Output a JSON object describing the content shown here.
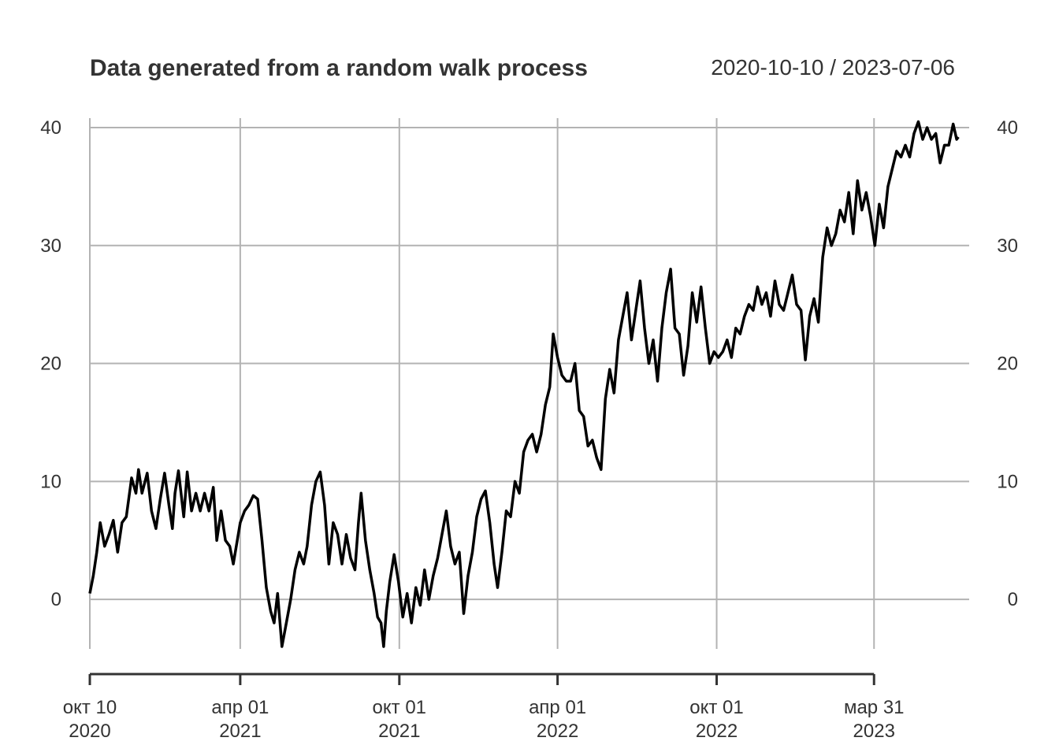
{
  "chart_data": {
    "type": "line",
    "title": "Data generated from a random walk process",
    "date_range_label": "2020-10-10 / 2023-07-06",
    "ylim": [
      -4.2,
      40.8
    ],
    "grid": true,
    "line_color": "#000000",
    "y_ticks": [
      0,
      10,
      20,
      30,
      40
    ],
    "x_ticks": [
      {
        "date": "2020-10-10",
        "line1": "окт 10",
        "line2": "2020"
      },
      {
        "date": "2021-04-01",
        "line1": "апр 01",
        "line2": "2021"
      },
      {
        "date": "2021-10-01",
        "line1": "окт 01",
        "line2": "2021"
      },
      {
        "date": "2022-04-01",
        "line1": "апр 01",
        "line2": "2022"
      },
      {
        "date": "2022-10-01",
        "line1": "окт 01",
        "line2": "2022"
      },
      {
        "date": "2023-03-31",
        "line1": "мар 31",
        "line2": "2023"
      }
    ],
    "series": [
      {
        "values": [
          [
            "2020-10-10",
            0.5
          ],
          [
            "2020-10-14",
            2
          ],
          [
            "2020-10-18",
            4
          ],
          [
            "2020-10-22",
            6.5
          ],
          [
            "2020-10-27",
            4.5
          ],
          [
            "2020-11-01",
            5.5
          ],
          [
            "2020-11-06",
            6.7
          ],
          [
            "2020-11-11",
            4
          ],
          [
            "2020-11-16",
            6.5
          ],
          [
            "2020-11-21",
            7
          ],
          [
            "2020-11-27",
            10.3
          ],
          [
            "2020-12-02",
            9
          ],
          [
            "2020-12-05",
            11
          ],
          [
            "2020-12-09",
            9
          ],
          [
            "2020-12-15",
            10.7
          ],
          [
            "2020-12-20",
            7.5
          ],
          [
            "2020-12-25",
            6
          ],
          [
            "2020-12-30",
            8.5
          ],
          [
            "2021-01-04",
            10.7
          ],
          [
            "2021-01-09",
            8
          ],
          [
            "2021-01-13",
            6
          ],
          [
            "2021-01-16",
            9
          ],
          [
            "2021-01-20",
            10.9
          ],
          [
            "2021-01-26",
            7
          ],
          [
            "2021-01-30",
            10.8
          ],
          [
            "2021-02-04",
            7.5
          ],
          [
            "2021-02-09",
            9
          ],
          [
            "2021-02-14",
            7.5
          ],
          [
            "2021-02-19",
            9
          ],
          [
            "2021-02-24",
            7.5
          ],
          [
            "2021-03-01",
            9.5
          ],
          [
            "2021-03-05",
            5
          ],
          [
            "2021-03-10",
            7.5
          ],
          [
            "2021-03-15",
            5
          ],
          [
            "2021-03-20",
            4.5
          ],
          [
            "2021-03-24",
            3
          ],
          [
            "2021-04-01",
            6.5
          ],
          [
            "2021-04-06",
            7.5
          ],
          [
            "2021-04-11",
            8
          ],
          [
            "2021-04-16",
            8.8
          ],
          [
            "2021-04-21",
            8.5
          ],
          [
            "2021-04-26",
            5
          ],
          [
            "2021-05-01",
            1
          ],
          [
            "2021-05-06",
            -1
          ],
          [
            "2021-05-10",
            -2
          ],
          [
            "2021-05-14",
            0.5
          ],
          [
            "2021-05-19",
            -4
          ],
          [
            "2021-05-24",
            -2
          ],
          [
            "2021-05-29",
            0
          ],
          [
            "2021-06-03",
            2.5
          ],
          [
            "2021-06-08",
            4
          ],
          [
            "2021-06-13",
            3
          ],
          [
            "2021-06-17",
            4.5
          ],
          [
            "2021-06-22",
            8
          ],
          [
            "2021-06-27",
            10
          ],
          [
            "2021-07-02",
            10.8
          ],
          [
            "2021-07-07",
            8
          ],
          [
            "2021-07-12",
            3
          ],
          [
            "2021-07-17",
            6.5
          ],
          [
            "2021-07-22",
            5.5
          ],
          [
            "2021-07-27",
            3
          ],
          [
            "2021-08-01",
            5.5
          ],
          [
            "2021-08-06",
            3.5
          ],
          [
            "2021-08-11",
            2.5
          ],
          [
            "2021-08-15",
            6.5
          ],
          [
            "2021-08-18",
            9
          ],
          [
            "2021-08-23",
            5
          ],
          [
            "2021-08-28",
            2.5
          ],
          [
            "2021-09-02",
            0.5
          ],
          [
            "2021-09-06",
            -1.5
          ],
          [
            "2021-09-10",
            -2
          ],
          [
            "2021-09-13",
            -4
          ],
          [
            "2021-09-16",
            -1
          ],
          [
            "2021-09-20",
            1.5
          ],
          [
            "2021-09-25",
            3.8
          ],
          [
            "2021-09-30",
            1.5
          ],
          [
            "2021-10-05",
            -1.5
          ],
          [
            "2021-10-10",
            0.5
          ],
          [
            "2021-10-15",
            -2
          ],
          [
            "2021-10-20",
            1
          ],
          [
            "2021-10-25",
            -0.5
          ],
          [
            "2021-10-30",
            2.5
          ],
          [
            "2021-11-04",
            0
          ],
          [
            "2021-11-09",
            2
          ],
          [
            "2021-11-14",
            3.5
          ],
          [
            "2021-11-19",
            5.5
          ],
          [
            "2021-11-24",
            7.5
          ],
          [
            "2021-11-29",
            4.5
          ],
          [
            "2021-12-04",
            3
          ],
          [
            "2021-12-09",
            4
          ],
          [
            "2021-12-14",
            -1.2
          ],
          [
            "2021-12-19",
            2
          ],
          [
            "2021-12-24",
            4
          ],
          [
            "2021-12-29",
            7
          ],
          [
            "2022-01-03",
            8.5
          ],
          [
            "2022-01-08",
            9.2
          ],
          [
            "2022-01-13",
            6.5
          ],
          [
            "2022-01-18",
            3
          ],
          [
            "2022-01-22",
            1
          ],
          [
            "2022-01-27",
            4
          ],
          [
            "2022-02-01",
            7.5
          ],
          [
            "2022-02-06",
            7
          ],
          [
            "2022-02-11",
            10
          ],
          [
            "2022-02-16",
            9
          ],
          [
            "2022-02-21",
            12.5
          ],
          [
            "2022-02-26",
            13.5
          ],
          [
            "2022-03-03",
            14
          ],
          [
            "2022-03-08",
            12.5
          ],
          [
            "2022-03-13",
            14
          ],
          [
            "2022-03-18",
            16.5
          ],
          [
            "2022-03-23",
            18
          ],
          [
            "2022-03-27",
            22.5
          ],
          [
            "2022-04-01",
            20.5
          ],
          [
            "2022-04-06",
            19
          ],
          [
            "2022-04-11",
            18.5
          ],
          [
            "2022-04-16",
            18.5
          ],
          [
            "2022-04-21",
            20
          ],
          [
            "2022-04-26",
            16
          ],
          [
            "2022-05-01",
            15.5
          ],
          [
            "2022-05-06",
            13
          ],
          [
            "2022-05-11",
            13.5
          ],
          [
            "2022-05-16",
            12
          ],
          [
            "2022-05-21",
            11
          ],
          [
            "2022-05-26",
            17
          ],
          [
            "2022-05-31",
            19.5
          ],
          [
            "2022-06-05",
            17.5
          ],
          [
            "2022-06-10",
            22
          ],
          [
            "2022-06-15",
            24
          ],
          [
            "2022-06-20",
            26
          ],
          [
            "2022-06-25",
            22
          ],
          [
            "2022-06-30",
            24.5
          ],
          [
            "2022-07-05",
            27
          ],
          [
            "2022-07-10",
            23
          ],
          [
            "2022-07-15",
            20
          ],
          [
            "2022-07-20",
            22
          ],
          [
            "2022-07-25",
            18.5
          ],
          [
            "2022-07-30",
            23
          ],
          [
            "2022-08-04",
            26
          ],
          [
            "2022-08-09",
            28
          ],
          [
            "2022-08-14",
            23
          ],
          [
            "2022-08-19",
            22.5
          ],
          [
            "2022-08-24",
            19
          ],
          [
            "2022-08-29",
            21.5
          ],
          [
            "2022-09-03",
            26
          ],
          [
            "2022-09-08",
            23.5
          ],
          [
            "2022-09-13",
            26.5
          ],
          [
            "2022-09-18",
            23
          ],
          [
            "2022-09-23",
            20
          ],
          [
            "2022-09-28",
            21
          ],
          [
            "2022-10-03",
            20.5
          ],
          [
            "2022-10-08",
            21
          ],
          [
            "2022-10-13",
            22
          ],
          [
            "2022-10-18",
            20.5
          ],
          [
            "2022-10-23",
            23
          ],
          [
            "2022-10-28",
            22.5
          ],
          [
            "2022-11-02",
            24
          ],
          [
            "2022-11-07",
            25
          ],
          [
            "2022-11-12",
            24.5
          ],
          [
            "2022-11-17",
            26.5
          ],
          [
            "2022-11-22",
            25
          ],
          [
            "2022-11-27",
            26
          ],
          [
            "2022-12-02",
            24
          ],
          [
            "2022-12-07",
            27
          ],
          [
            "2022-12-12",
            25
          ],
          [
            "2022-12-17",
            24.5
          ],
          [
            "2022-12-22",
            26
          ],
          [
            "2022-12-27",
            27.5
          ],
          [
            "2023-01-01",
            25
          ],
          [
            "2023-01-06",
            24.5
          ],
          [
            "2023-01-11",
            20.3
          ],
          [
            "2023-01-16",
            24
          ],
          [
            "2023-01-21",
            25.5
          ],
          [
            "2023-01-26",
            23.5
          ],
          [
            "2023-01-31",
            29
          ],
          [
            "2023-02-05",
            31.5
          ],
          [
            "2023-02-10",
            30
          ],
          [
            "2023-02-15",
            31
          ],
          [
            "2023-02-20",
            33
          ],
          [
            "2023-02-25",
            32
          ],
          [
            "2023-03-02",
            34.5
          ],
          [
            "2023-03-07",
            31
          ],
          [
            "2023-03-12",
            35.5
          ],
          [
            "2023-03-17",
            33
          ],
          [
            "2023-03-22",
            34.5
          ],
          [
            "2023-03-27",
            32.5
          ],
          [
            "2023-04-01",
            30
          ],
          [
            "2023-04-06",
            33.5
          ],
          [
            "2023-04-11",
            31.5
          ],
          [
            "2023-04-16",
            35
          ],
          [
            "2023-04-21",
            36.5
          ],
          [
            "2023-04-26",
            38
          ],
          [
            "2023-05-01",
            37.5
          ],
          [
            "2023-05-06",
            38.5
          ],
          [
            "2023-05-11",
            37.5
          ],
          [
            "2023-05-16",
            39.5
          ],
          [
            "2023-05-21",
            40.5
          ],
          [
            "2023-05-26",
            39
          ],
          [
            "2023-05-31",
            40
          ],
          [
            "2023-06-05",
            39
          ],
          [
            "2023-06-10",
            39.5
          ],
          [
            "2023-06-15",
            37
          ],
          [
            "2023-06-20",
            38.5
          ],
          [
            "2023-06-25",
            38.5
          ],
          [
            "2023-06-30",
            40.3
          ],
          [
            "2023-07-04",
            39
          ],
          [
            "2023-07-06",
            39.2
          ]
        ]
      }
    ]
  }
}
